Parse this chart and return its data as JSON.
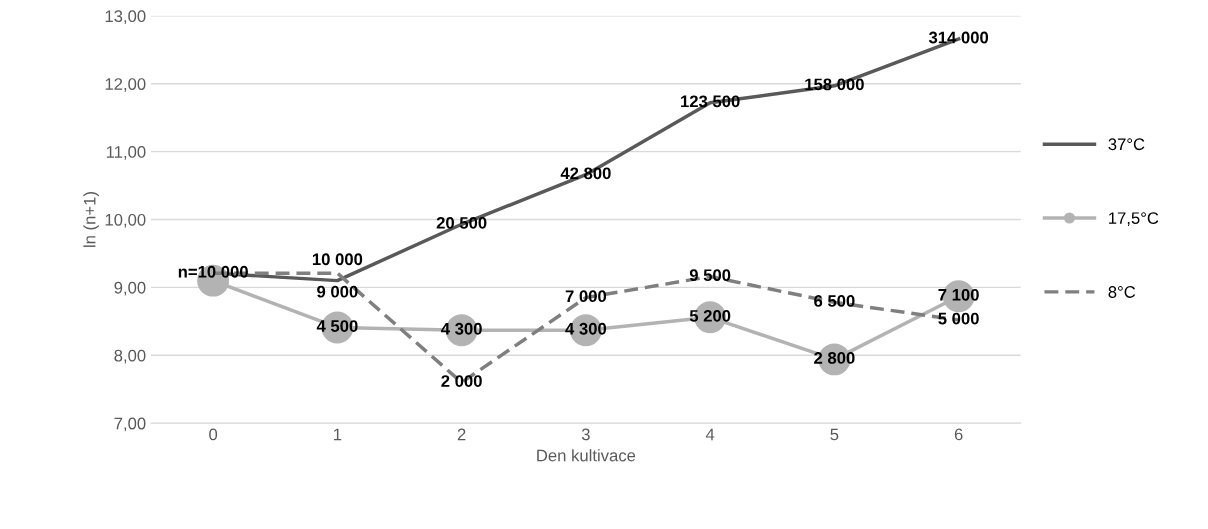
{
  "chart_data": {
    "type": "line",
    "xlabel": "Den kultivace",
    "ylabel": "ln (n+1)",
    "categories": [
      "0",
      "1",
      "2",
      "3",
      "4",
      "5",
      "6"
    ],
    "ylim": [
      7,
      13
    ],
    "yticks": [
      {
        "value": 7,
        "label": "7,00"
      },
      {
        "value": 8,
        "label": "8,00"
      },
      {
        "value": 9,
        "label": "9,00"
      },
      {
        "value": 10,
        "label": "10,00"
      },
      {
        "value": 11,
        "label": "11,00"
      },
      {
        "value": 12,
        "label": "12,00"
      },
      {
        "value": 13,
        "label": "13,00"
      }
    ],
    "grid": "y",
    "legend": "right",
    "series": [
      {
        "name": "37°C",
        "color": "#595959",
        "line_style": "solid",
        "marker": "none",
        "values": [
          9.21,
          9.1,
          9.93,
          10.66,
          11.72,
          11.97,
          12.66
        ]
      },
      {
        "name": "17,5°C",
        "color": "#b3b3b3",
        "line_style": "solid",
        "marker": "circle",
        "values": [
          9.1,
          8.41,
          8.37,
          8.37,
          8.56,
          7.94,
          8.87
        ]
      },
      {
        "name": "8°C",
        "color": "#7f7f7f",
        "line_style": "dashed",
        "marker": "none",
        "values": [
          9.21,
          9.21,
          7.6,
          8.85,
          9.16,
          8.78,
          8.52
        ]
      }
    ],
    "annotations": [
      {
        "text": "n=10 000",
        "x": "0",
        "y": 9.21
      },
      {
        "text": "9 000",
        "x": "1",
        "y": 9.1
      },
      {
        "text": "20 500",
        "x": "2",
        "y": 9.93
      },
      {
        "text": "42 800",
        "x": "3",
        "y": 10.66
      },
      {
        "text": "123 500",
        "x": "4",
        "y": 11.72
      },
      {
        "text": "158 000",
        "x": "5",
        "y": 11.97
      },
      {
        "text": "314 000",
        "x": "6",
        "y": 12.66
      },
      {
        "text": "4 500",
        "x": "1",
        "y": 8.41
      },
      {
        "text": "4 300",
        "x": "2",
        "y": 8.37
      },
      {
        "text": "4 300",
        "x": "3",
        "y": 8.37
      },
      {
        "text": "5 200",
        "x": "4",
        "y": 8.56
      },
      {
        "text": "2 800",
        "x": "5",
        "y": 7.94
      },
      {
        "text": "7 100",
        "x": "6",
        "y": 8.87
      },
      {
        "text": "10 000",
        "x": "1",
        "y": 9.21
      },
      {
        "text": "2 000",
        "x": "2",
        "y": 7.6
      },
      {
        "text": "7 000",
        "x": "3",
        "y": 8.85
      },
      {
        "text": "9 500",
        "x": "4",
        "y": 9.16
      },
      {
        "text": "6 500",
        "x": "5",
        "y": 8.78
      },
      {
        "text": "5 000",
        "x": "6",
        "y": 8.52
      }
    ]
  }
}
